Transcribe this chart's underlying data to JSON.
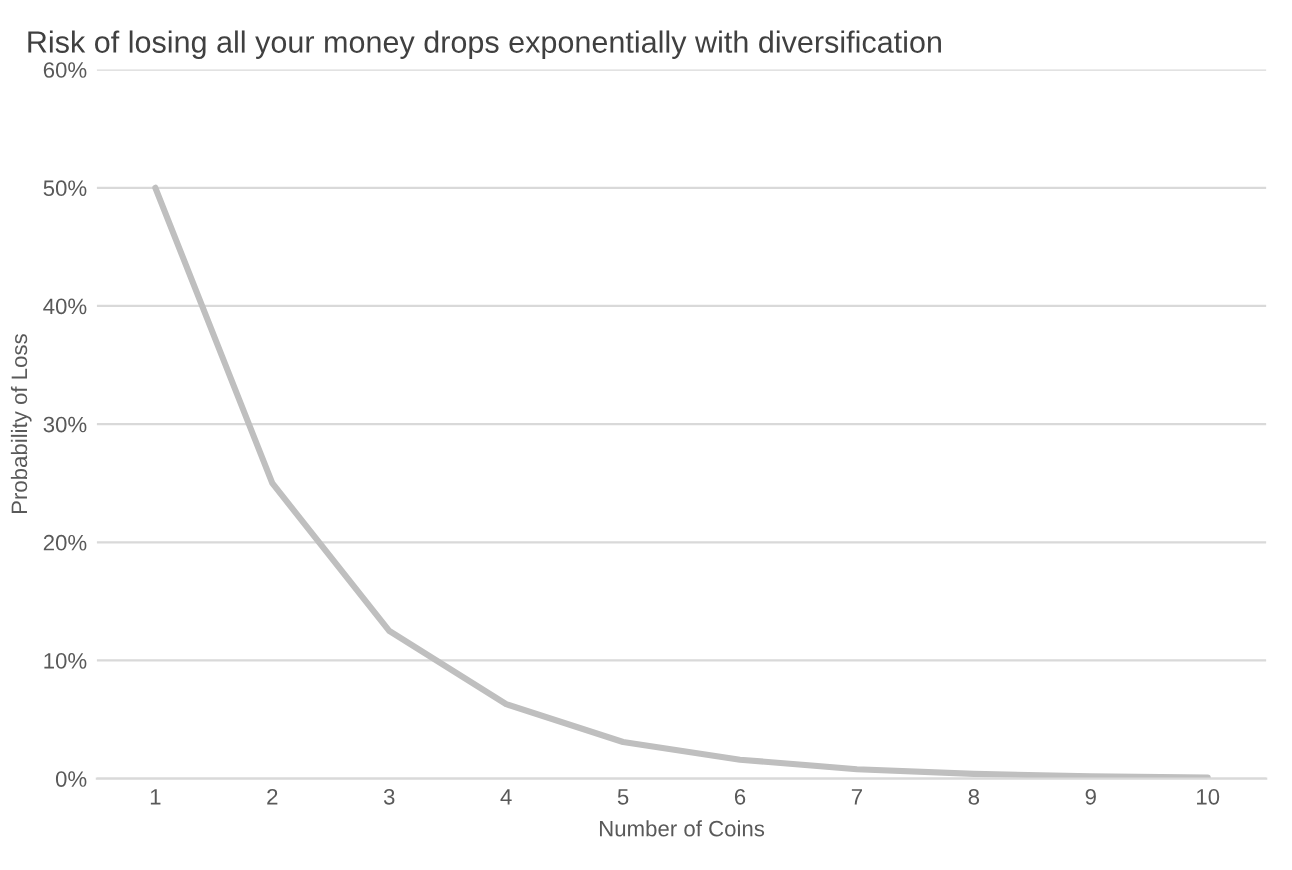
{
  "chart_data": {
    "type": "line",
    "title": "Risk of losing all your money drops exponentially with diversification",
    "xlabel": "Number of Coins",
    "ylabel": "Probability of Loss",
    "categories": [
      "1",
      "2",
      "3",
      "4",
      "5",
      "6",
      "7",
      "8",
      "9",
      "10"
    ],
    "series": [
      {
        "color": "#bfbfbf",
        "values": [
          50,
          25,
          12.5,
          6.3,
          3.1,
          1.6,
          0.8,
          0.4,
          0.2,
          0.1
        ]
      }
    ],
    "ylim": [
      0,
      60
    ],
    "yticks": [
      {
        "value": 0,
        "label": "0%"
      },
      {
        "value": 10,
        "label": "10%"
      },
      {
        "value": 20,
        "label": "20%"
      },
      {
        "value": 30,
        "label": "30%"
      },
      {
        "value": 40,
        "label": "40%"
      },
      {
        "value": 50,
        "label": "50%"
      },
      {
        "value": 60,
        "label": "60%"
      }
    ],
    "grid": "y",
    "marker": "none",
    "line_style": "solid",
    "legend": false
  }
}
